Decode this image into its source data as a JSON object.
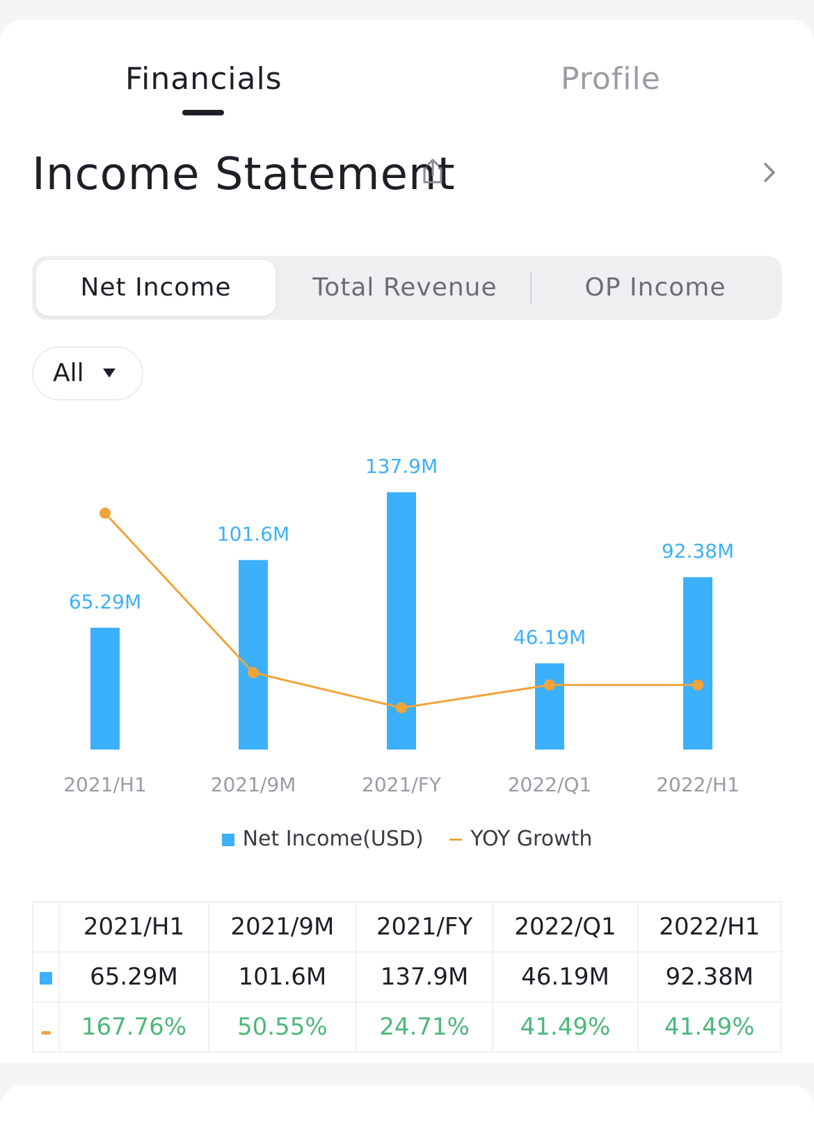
{
  "tabs": [
    {
      "label": "Financials",
      "active": true
    },
    {
      "label": "Profile",
      "active": false
    }
  ],
  "section": {
    "title": "Income Statement"
  },
  "segments": [
    {
      "label": "Net Income",
      "active": true
    },
    {
      "label": "Total Revenue",
      "active": false
    },
    {
      "label": "OP Income",
      "active": false
    }
  ],
  "filter": {
    "label": "All"
  },
  "colors": {
    "bar": "#3cb0fa",
    "line": "#efa43a",
    "growth_text": "#4cb87a",
    "bar_label": "#3cb0fa"
  },
  "chart_data": {
    "type": "bar",
    "categories": [
      "2021/H1",
      "2021/9M",
      "2021/FY",
      "2022/Q1",
      "2022/H1"
    ],
    "series": [
      {
        "name": "Net Income(USD)",
        "type": "bar",
        "values": [
          65.29,
          101.6,
          137.9,
          46.19,
          92.38
        ],
        "labels": [
          "65.29M",
          "101.6M",
          "137.9M",
          "46.19M",
          "92.38M"
        ]
      },
      {
        "name": "YOY Growth",
        "type": "line",
        "values": [
          167.76,
          50.55,
          24.71,
          41.49,
          41.49
        ]
      }
    ],
    "legend": [
      "Net Income(USD)",
      "YOY Growth"
    ],
    "legend_position": "bottom",
    "grid": false
  },
  "table": {
    "headers": [
      "2021/H1",
      "2021/9M",
      "2021/FY",
      "2022/Q1",
      "2022/H1"
    ],
    "values": [
      "65.29M",
      "101.6M",
      "137.9M",
      "46.19M",
      "92.38M"
    ],
    "growth": [
      "167.76%",
      "50.55%",
      "24.71%",
      "41.49%",
      "41.49%"
    ]
  }
}
